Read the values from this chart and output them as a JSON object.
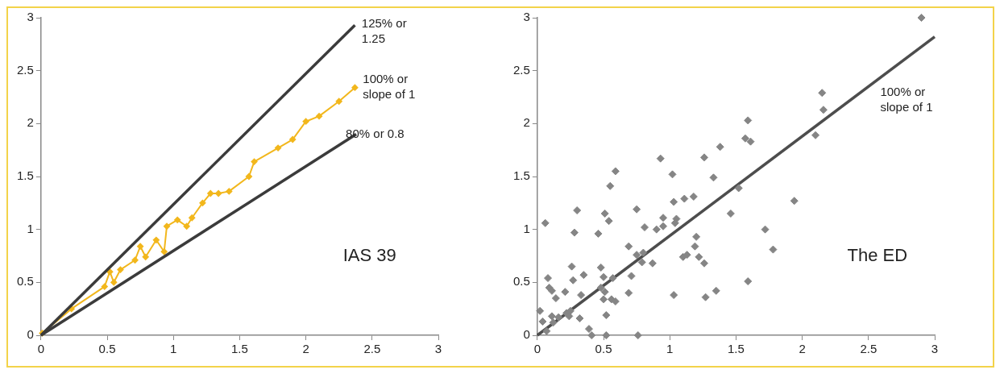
{
  "chart_data": [
    {
      "type": "line",
      "xlim": [
        0,
        3
      ],
      "ylim": [
        0,
        3
      ],
      "xticks": [
        0,
        0.5,
        1,
        1.5,
        2,
        2.5,
        3
      ],
      "yticks": [
        0,
        0.5,
        1,
        1.5,
        2,
        2.5,
        3
      ],
      "grid": false,
      "legend": false,
      "series": [
        {
          "color": "#3b3b3b",
          "marker": "none",
          "x": [
            0,
            2.37
          ],
          "values": [
            0,
            2.93
          ]
        },
        {
          "color": "#3b3b3b",
          "marker": "none",
          "x": [
            0,
            2.38
          ],
          "values": [
            0,
            1.9
          ]
        },
        {
          "color": "#f2b71c",
          "marker": "diamond",
          "x": [
            0.01,
            0.23,
            0.48,
            0.52,
            0.55,
            0.6,
            0.71,
            0.75,
            0.79,
            0.87,
            0.93,
            0.95,
            1.03,
            1.1,
            1.14,
            1.22,
            1.28,
            1.34,
            1.42,
            1.57,
            1.61,
            1.79,
            1.9,
            2.0,
            2.1,
            2.25,
            2.37
          ],
          "values": [
            0.02,
            0.25,
            0.46,
            0.6,
            0.5,
            0.62,
            0.71,
            0.84,
            0.74,
            0.9,
            0.79,
            1.03,
            1.09,
            1.03,
            1.11,
            1.25,
            1.34,
            1.34,
            1.36,
            1.5,
            1.64,
            1.77,
            1.85,
            2.02,
            2.07,
            2.21,
            2.34
          ]
        }
      ],
      "annotations": [
        "125% or\n1.25",
        "100% or\nslope of 1",
        "80% or 0.8",
        "IAS 39"
      ]
    },
    {
      "type": "scatter",
      "xlim": [
        0,
        3
      ],
      "ylim": [
        0,
        3
      ],
      "xticks": [
        0,
        0.5,
        1,
        1.5,
        2,
        2.5,
        3
      ],
      "yticks": [
        0,
        0.5,
        1,
        1.5,
        2,
        2.5,
        3
      ],
      "grid": false,
      "legend": false,
      "series": [
        {
          "color": "#858585",
          "marker": "diamond",
          "x": [
            2.9,
            2.15,
            2.16,
            2.1,
            1.59,
            1.57,
            1.61,
            1.38,
            1.26,
            0.93,
            1.02,
            1.33,
            0.59,
            0.55,
            1.52,
            1.94,
            1.03,
            1.11,
            1.18,
            0.3,
            0.75,
            0.51,
            1.46,
            0.95,
            1.05,
            0.54,
            0.06,
            1.04,
            0.81,
            0.95,
            0.9,
            1.72,
            0.28,
            0.46,
            1.2,
            0.69,
            1.19,
            1.78,
            0.8,
            0.75,
            1.22,
            1.1,
            1.13,
            0.79,
            0.87,
            1.26,
            0.26,
            0.48,
            0.35,
            0.71,
            0.5,
            0.57,
            0.08,
            0.27,
            1.59,
            0.09,
            0.48,
            0.11,
            0.51,
            1.35,
            0.21,
            0.69,
            1.03,
            0.33,
            1.27,
            0.14,
            0.5,
            0.56,
            0.59,
            0.02,
            0.25,
            0.22,
            0.24,
            0.11,
            0.16,
            0.52,
            0.32,
            0.04,
            0.12,
            0.39,
            0.07,
            0.41,
            0.52,
            0.76
          ],
          "values": [
            3.0,
            2.29,
            2.13,
            1.89,
            2.03,
            1.86,
            1.83,
            1.78,
            1.68,
            1.67,
            1.52,
            1.49,
            1.55,
            1.41,
            1.39,
            1.27,
            1.26,
            1.29,
            1.31,
            1.18,
            1.19,
            1.15,
            1.15,
            1.11,
            1.1,
            1.08,
            1.06,
            1.06,
            1.02,
            1.03,
            1.0,
            1.0,
            0.97,
            0.96,
            0.93,
            0.84,
            0.84,
            0.81,
            0.78,
            0.76,
            0.74,
            0.74,
            0.76,
            0.69,
            0.68,
            0.68,
            0.65,
            0.64,
            0.57,
            0.56,
            0.55,
            0.54,
            0.54,
            0.52,
            0.51,
            0.45,
            0.45,
            0.42,
            0.41,
            0.42,
            0.41,
            0.4,
            0.38,
            0.38,
            0.36,
            0.35,
            0.34,
            0.34,
            0.32,
            0.23,
            0.23,
            0.21,
            0.18,
            0.18,
            0.17,
            0.19,
            0.16,
            0.13,
            0.12,
            0.06,
            0.04,
            0.0,
            0.0,
            0.0
          ]
        },
        {
          "type": "line",
          "color": "#4d4d4d",
          "marker": "none",
          "x": [
            0,
            3
          ],
          "values": [
            0,
            2.82
          ]
        }
      ],
      "annotations": [
        "100% or\nslope of 1",
        "The ED"
      ]
    }
  ]
}
